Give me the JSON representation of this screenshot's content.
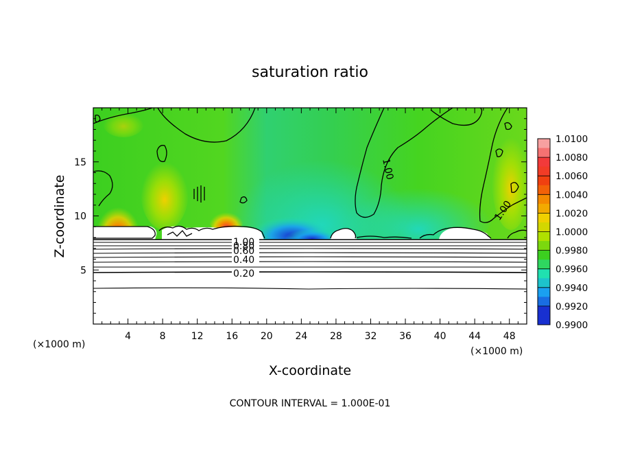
{
  "chart_data": {
    "type": "heatmap",
    "title": "saturation ratio",
    "xlabel": "X-coordinate",
    "ylabel": "Z-coordinate",
    "x_unit": "(×1000 m)",
    "y_unit": "(×1000 m)",
    "xlim": [
      0,
      50
    ],
    "ylim": [
      0,
      20
    ],
    "x_ticks": [
      "4",
      "8",
      "12",
      "16",
      "20",
      "24",
      "28",
      "32",
      "36",
      "40",
      "44",
      "48"
    ],
    "y_ticks": [
      "5",
      "10",
      "15"
    ],
    "footer": "CONTOUR INTERVAL = 1.000E-01",
    "colorbar": {
      "labels": [
        "1.0100",
        "1.0080",
        "1.0060",
        "1.0040",
        "1.0020",
        "1.0000",
        "0.9980",
        "0.9960",
        "0.9940",
        "0.9920",
        "0.9900"
      ],
      "colors": [
        "#f7a0a0",
        "#f23a3a",
        "#f04010",
        "#f48a00",
        "#f0d000",
        "#b0e000",
        "#3ccf20",
        "#20e0b0",
        "#1aa0f0",
        "#1830d0",
        "#4010a0"
      ]
    },
    "contour_labels": [
      "1.00",
      "0.80",
      "0.60",
      "0.40",
      "0.20",
      "1.00",
      "1.00"
    ],
    "contours_km": [
      {
        "level": "0.20",
        "z": 4.9
      },
      {
        "level": "0.40",
        "z": 5.8
      },
      {
        "level": "0.60",
        "z": 6.4
      },
      {
        "level": "0.80",
        "z": 6.9
      },
      {
        "level": "1.00",
        "z": 7.5
      }
    ]
  }
}
